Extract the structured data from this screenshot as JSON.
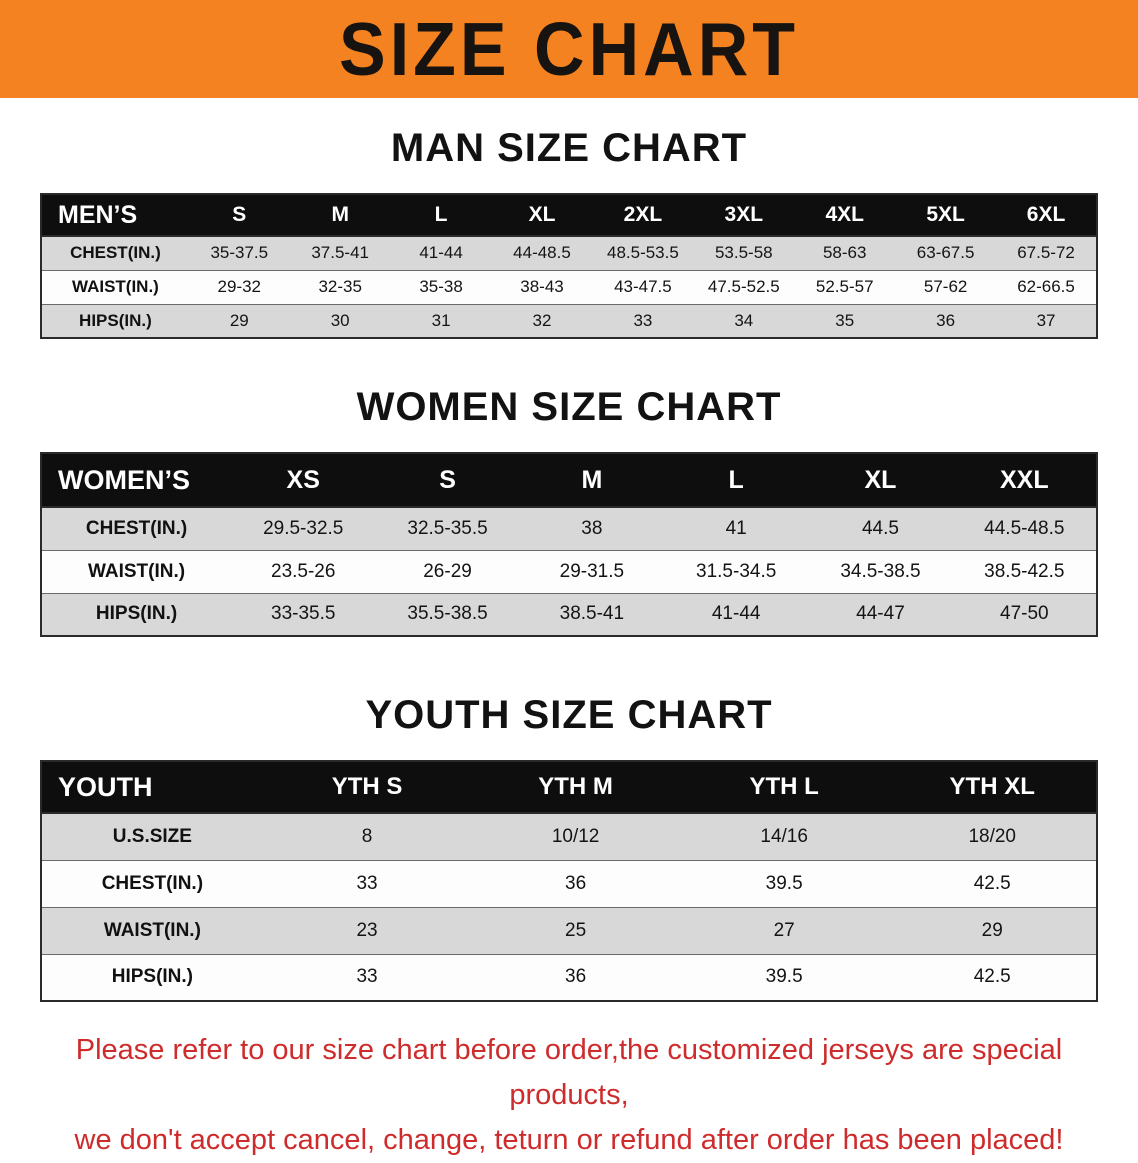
{
  "banner": {
    "title": "SIZE CHART"
  },
  "colors": {
    "banner_bg": "#F58220",
    "table_header_bg": "#0E0E0E",
    "row_stripe": "#D8D8D8",
    "notice_red": "#CE2C2C"
  },
  "sections": [
    {
      "id": "men",
      "heading": "MAN SIZE CHART",
      "table": {
        "header": [
          "MEN’S",
          "S",
          "M",
          "L",
          "XL",
          "2XL",
          "3XL",
          "4XL",
          "5XL",
          "6XL"
        ],
        "rows": [
          [
            "CHEST(IN.)",
            "35-37.5",
            "37.5-41",
            "41-44",
            "44-48.5",
            "48.5-53.5",
            "53.5-58",
            "58-63",
            "63-67.5",
            "67.5-72"
          ],
          [
            "WAIST(IN.)",
            "29-32",
            "32-35",
            "35-38",
            "38-43",
            "43-47.5",
            "47.5-52.5",
            "52.5-57",
            "57-62",
            "62-66.5"
          ],
          [
            "HIPS(IN.)",
            "29",
            "30",
            "31",
            "32",
            "33",
            "34",
            "35",
            "36",
            "37"
          ]
        ]
      }
    },
    {
      "id": "women",
      "heading": "WOMEN SIZE CHART",
      "table": {
        "header": [
          "WOMEN’S",
          "XS",
          "S",
          "M",
          "L",
          "XL",
          "XXL"
        ],
        "rows": [
          [
            "CHEST(IN.)",
            "29.5-32.5",
            "32.5-35.5",
            "38",
            "41",
            "44.5",
            "44.5-48.5"
          ],
          [
            "WAIST(IN.)",
            "23.5-26",
            "26-29",
            "29-31.5",
            "31.5-34.5",
            "34.5-38.5",
            "38.5-42.5"
          ],
          [
            "HIPS(IN.)",
            "33-35.5",
            "35.5-38.5",
            "38.5-41",
            "41-44",
            "44-47",
            "47-50"
          ]
        ]
      }
    },
    {
      "id": "youth",
      "heading": "YOUTH SIZE CHART",
      "table": {
        "header": [
          "YOUTH",
          "YTH S",
          "YTH M",
          "YTH L",
          "YTH XL"
        ],
        "rows": [
          [
            "U.S.SIZE",
            "8",
            "10/12",
            "14/16",
            "18/20"
          ],
          [
            "CHEST(IN.)",
            "33",
            "36",
            "39.5",
            "42.5"
          ],
          [
            "WAIST(IN.)",
            "23",
            "25",
            "27",
            "29"
          ],
          [
            "HIPS(IN.)",
            "33",
            "36",
            "39.5",
            "42.5"
          ]
        ]
      }
    }
  ],
  "footer": {
    "line1": "Please refer to our size chart before order,the customized jerseys are special products,",
    "line2": "we don't accept cancel, change, teturn or refund after order has been placed!"
  }
}
